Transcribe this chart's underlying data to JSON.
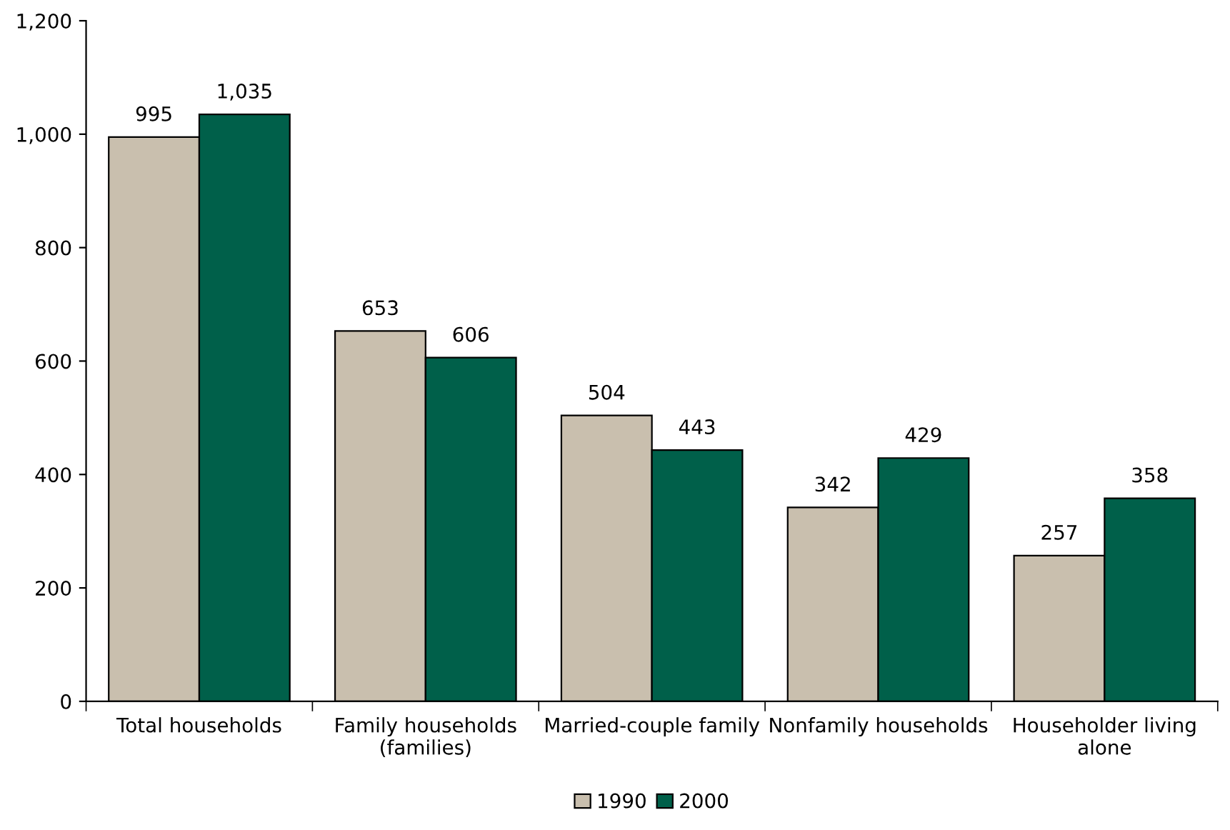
{
  "chart_data": {
    "type": "bar",
    "categories": [
      "Total households",
      "Family households\n(families)",
      "Married-couple family",
      "Nonfamily households",
      "Householder living\nalone"
    ],
    "series": [
      {
        "name": "1990",
        "color": "#c9bfae",
        "values": [
          995,
          653,
          504,
          342,
          257
        ],
        "value_labels": [
          "995",
          "653",
          "504",
          "342",
          "257"
        ]
      },
      {
        "name": "2000",
        "color": "#00604a",
        "values": [
          1035,
          606,
          443,
          429,
          358
        ],
        "value_labels": [
          "1,035",
          "606",
          "443",
          "429",
          "358"
        ]
      }
    ],
    "ylim": [
      0,
      1200
    ],
    "yticks": [
      0,
      200,
      400,
      600,
      800,
      {
        "value": 1000,
        "label": "1,000"
      },
      {
        "value": 1200,
        "label": "1,200"
      }
    ],
    "grid": false,
    "legend": "bottom"
  }
}
